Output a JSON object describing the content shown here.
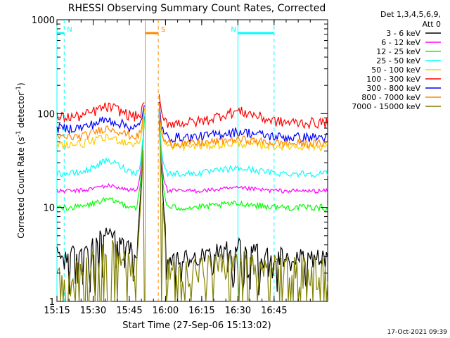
{
  "chart_data": {
    "type": "line",
    "title": "RHESSI Observing Summary Count Rates, Corrected",
    "xlabel": "Start Time (27-Sep-06 15:13:02)",
    "ylabel_main": "Corrected Count Rate (s",
    "ylabel_sup1": "-1",
    "ylabel_mid": " detector",
    "ylabel_sup2": "-1",
    "ylabel_end": ")",
    "y_scale": "log",
    "ylim": [
      1,
      1000
    ],
    "xlim_minutes": [
      15.0,
      16.87
    ],
    "x_ticks": [
      {
        "label": "15:15",
        "value": 15.0
      },
      {
        "label": "15:30",
        "value": 15.25
      },
      {
        "label": "15:45",
        "value": 15.5
      },
      {
        "label": "16:00",
        "value": 15.75
      },
      {
        "label": "16:15",
        "value": 16.0
      },
      {
        "label": "16:30",
        "value": 16.25
      },
      {
        "label": "16:45",
        "value": 16.5
      }
    ],
    "y_ticks": [
      {
        "label": "1",
        "value": 1
      },
      {
        "label": "10",
        "value": 10
      },
      {
        "label": "100",
        "value": 100
      },
      {
        "label": "1000",
        "value": 1000
      }
    ],
    "legend_header": [
      "Det 1,3,4,5,6,9,",
      "Att 0"
    ],
    "legend_position": "right",
    "series": [
      {
        "name": "3 - 6 keV",
        "color": "#000000",
        "pre_base": 3.2,
        "pre_bump": 2.2,
        "post_base": 3.0,
        "post_bump": 1.0,
        "peak": 160,
        "decay": 3.0,
        "noise": 0.7,
        "floor": 2.8
      },
      {
        "name": "6 - 12 keV",
        "color": "#ff00ff",
        "pre_base": 15,
        "pre_bump": 2,
        "post_base": 15,
        "post_bump": 1,
        "peak": 150,
        "decay": 2.0,
        "noise": 0.8,
        "floor": 0
      },
      {
        "name": "12 - 25 keV",
        "color": "#00ff00",
        "pre_base": 10,
        "pre_bump": 2,
        "post_base": 10,
        "post_bump": 1,
        "peak": 140,
        "decay": 2.0,
        "noise": 0.8,
        "floor": 0
      },
      {
        "name": "25 - 50 keV",
        "color": "#00ffff",
        "pre_base": 23,
        "pre_bump": 8,
        "post_base": 23,
        "post_bump": 3,
        "peak": 150,
        "decay": 2.0,
        "noise": 1.2,
        "floor": 0
      },
      {
        "name": "50 - 100 keV",
        "color": "#ffcc00",
        "pre_base": 47,
        "pre_bump": 8,
        "post_base": 45,
        "post_bump": 3,
        "peak": 160,
        "decay": 2.0,
        "noise": 1.5,
        "floor": 0
      },
      {
        "name": "100 - 300 keV",
        "color": "#ff0000",
        "pre_base": 92,
        "pre_bump": 25,
        "post_base": 80,
        "post_bump": 25,
        "peak": 190,
        "decay": 2.0,
        "noise": 2.0,
        "floor": 0
      },
      {
        "name": "300 - 800 keV",
        "color": "#0000ff",
        "pre_base": 70,
        "pre_bump": 15,
        "post_base": 56,
        "post_bump": 8,
        "peak": 180,
        "decay": 2.0,
        "noise": 1.8,
        "floor": 0
      },
      {
        "name": "800 - 7000 keV",
        "color": "#ff8800",
        "pre_base": 56,
        "pre_bump": 14,
        "post_base": 48,
        "post_bump": 5,
        "peak": 170,
        "decay": 2.0,
        "noise": 1.5,
        "floor": 0
      },
      {
        "name": "7000 - 15000 keV",
        "color": "#808000",
        "pre_base": 2.0,
        "pre_bump": 1.8,
        "post_base": 2.2,
        "post_bump": 0.3,
        "peak": 130,
        "decay": 3.0,
        "noise": 0.9,
        "floor": 1.0
      }
    ],
    "gap_start": 15.61,
    "gap_end": 15.7,
    "flags": [
      {
        "label": "N",
        "start": 15.0,
        "end": 15.05,
        "color": "#00ffff"
      },
      {
        "label": "N",
        "start": 16.25,
        "end": 16.5,
        "color": "#00ffff"
      },
      {
        "label": "S",
        "start": 15.61,
        "end": 15.7,
        "color": "#ff8800"
      }
    ],
    "footer_date": "17-Oct-2021 09:39"
  }
}
